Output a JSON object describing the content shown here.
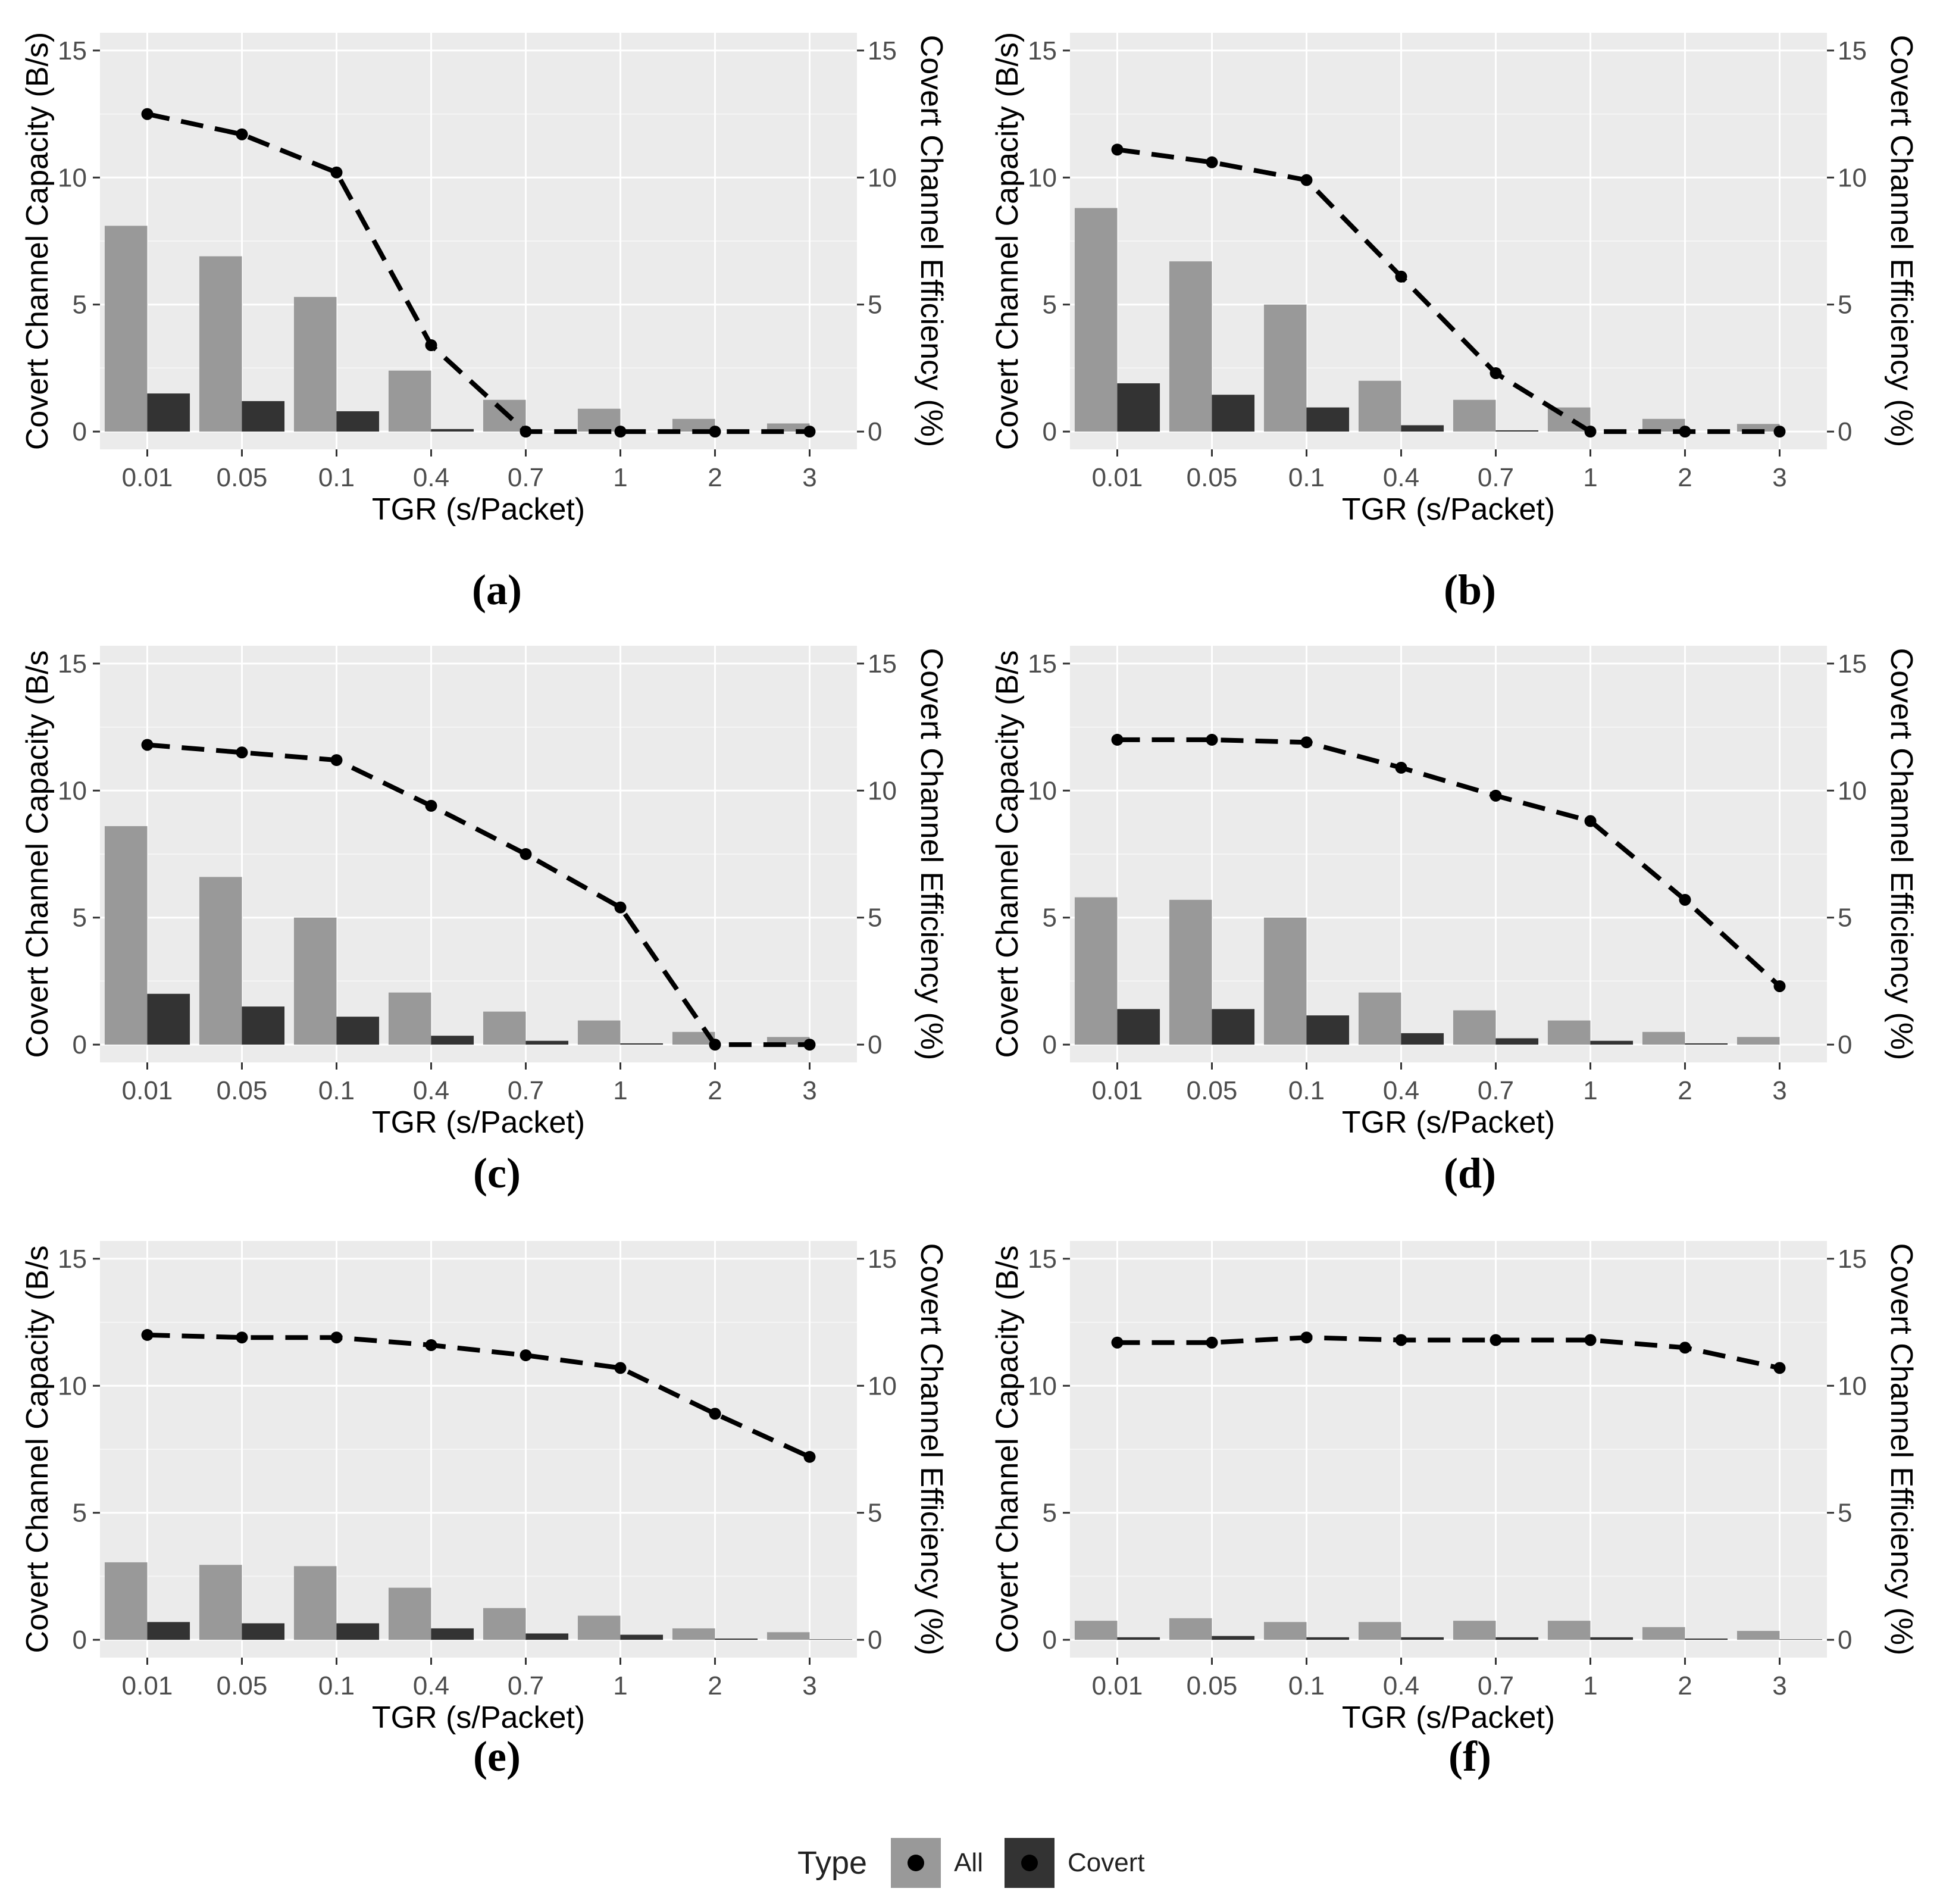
{
  "chart_data": [
    {
      "type": "bar+line",
      "panel": "(a)",
      "categories": [
        "0.01",
        "0.05",
        "0.1",
        "0.4",
        "0.7",
        "1",
        "2",
        "3"
      ],
      "series": [
        {
          "name": "All",
          "kind": "bar",
          "values": [
            8.1,
            6.9,
            5.3,
            2.4,
            1.25,
            0.9,
            0.5,
            0.32
          ]
        },
        {
          "name": "Covert",
          "kind": "bar",
          "values": [
            1.5,
            1.2,
            0.8,
            0.1,
            0.0,
            0.0,
            0.0,
            0.0
          ]
        },
        {
          "name": "Covert Channel Efficiency (%)",
          "kind": "line",
          "values": [
            12.5,
            11.7,
            10.2,
            3.4,
            0.0,
            0.0,
            0.0,
            0.0
          ]
        }
      ],
      "xlabel": "TGR (s/Packet)",
      "ylabel": "Covert Channel Capacity (B/s)",
      "y2label": "Covert Channel Efficiency (%)",
      "ylim": [
        -0.7,
        15.7
      ],
      "yticks": [
        "0",
        "5",
        "10",
        "15"
      ]
    },
    {
      "type": "bar+line",
      "panel": "(b)",
      "categories": [
        "0.01",
        "0.05",
        "0.1",
        "0.4",
        "0.7",
        "1",
        "2",
        "3"
      ],
      "series": [
        {
          "name": "All",
          "kind": "bar",
          "values": [
            8.8,
            6.7,
            5.0,
            2.0,
            1.25,
            0.95,
            0.5,
            0.3
          ]
        },
        {
          "name": "Covert",
          "kind": "bar",
          "values": [
            1.9,
            1.45,
            0.95,
            0.25,
            0.05,
            0.0,
            0.0,
            0.0
          ]
        },
        {
          "name": "Covert Channel Efficiency (%)",
          "kind": "line",
          "values": [
            11.1,
            10.6,
            9.9,
            6.1,
            2.3,
            0.0,
            0.0,
            0.0
          ]
        }
      ],
      "xlabel": "TGR (s/Packet)",
      "ylabel": "Covert Channel Capacity (B/s)",
      "y2label": "Covert Channel Efficiency (%)",
      "ylim": [
        -0.7,
        15.7
      ],
      "yticks": [
        "0",
        "5",
        "10",
        "15"
      ]
    },
    {
      "type": "bar+line",
      "panel": "(c)",
      "categories": [
        "0.01",
        "0.05",
        "0.1",
        "0.4",
        "0.7",
        "1",
        "2",
        "3"
      ],
      "series": [
        {
          "name": "All",
          "kind": "bar",
          "values": [
            8.6,
            6.6,
            5.0,
            2.05,
            1.3,
            0.95,
            0.5,
            0.3
          ]
        },
        {
          "name": "Covert",
          "kind": "bar",
          "values": [
            2.0,
            1.5,
            1.1,
            0.35,
            0.15,
            0.05,
            0.0,
            0.0
          ]
        },
        {
          "name": "Covert Channel Efficiency (%)",
          "kind": "line",
          "values": [
            11.8,
            11.5,
            11.2,
            9.4,
            7.5,
            5.4,
            0.0,
            0.0
          ]
        }
      ],
      "xlabel": "TGR (s/Packet)",
      "ylabel": "Covert Channel Capacity (B/s",
      "y2label": "Covert Channel Efficiency (%)",
      "ylim": [
        -0.7,
        15.7
      ],
      "yticks": [
        "0",
        "5",
        "10",
        "15"
      ]
    },
    {
      "type": "bar+line",
      "panel": "(d)",
      "categories": [
        "0.01",
        "0.05",
        "0.1",
        "0.4",
        "0.7",
        "1",
        "2",
        "3"
      ],
      "series": [
        {
          "name": "All",
          "kind": "bar",
          "values": [
            5.8,
            5.7,
            5.0,
            2.05,
            1.35,
            0.95,
            0.5,
            0.3
          ]
        },
        {
          "name": "Covert",
          "kind": "bar",
          "values": [
            1.4,
            1.4,
            1.15,
            0.45,
            0.25,
            0.15,
            0.05,
            0.0
          ]
        },
        {
          "name": "Covert Channel Efficiency (%)",
          "kind": "line",
          "values": [
            12.0,
            12.0,
            11.9,
            10.9,
            9.8,
            8.8,
            5.7,
            2.3
          ]
        }
      ],
      "xlabel": "TGR (s/Packet)",
      "ylabel": "Covert Channel Capacity (B/s",
      "y2label": "Covert Channel Efficiency (%)",
      "ylim": [
        -0.7,
        15.7
      ],
      "yticks": [
        "0",
        "5",
        "10",
        "15"
      ]
    },
    {
      "type": "bar+line",
      "panel": "(e)",
      "categories": [
        "0.01",
        "0.05",
        "0.1",
        "0.4",
        "0.7",
        "1",
        "2",
        "3"
      ],
      "series": [
        {
          "name": "All",
          "kind": "bar",
          "values": [
            3.05,
            2.95,
            2.9,
            2.05,
            1.25,
            0.95,
            0.45,
            0.3
          ]
        },
        {
          "name": "Covert",
          "kind": "bar",
          "values": [
            0.7,
            0.65,
            0.65,
            0.45,
            0.25,
            0.2,
            0.05,
            0.02
          ]
        },
        {
          "name": "Covert Channel Efficiency (%)",
          "kind": "line",
          "values": [
            12.0,
            11.9,
            11.9,
            11.6,
            11.2,
            10.7,
            8.9,
            7.2
          ]
        }
      ],
      "xlabel": "TGR (s/Packet)",
      "ylabel": "Covert Channel Capacity (B/s",
      "y2label": "Covert Channel Efficiency (%)",
      "ylim": [
        -0.7,
        15.7
      ],
      "yticks": [
        "0",
        "5",
        "10",
        "15"
      ]
    },
    {
      "type": "bar+line",
      "panel": "(f)",
      "categories": [
        "0.01",
        "0.05",
        "0.1",
        "0.4",
        "0.7",
        "1",
        "2",
        "3"
      ],
      "series": [
        {
          "name": "All",
          "kind": "bar",
          "values": [
            0.75,
            0.85,
            0.7,
            0.7,
            0.75,
            0.75,
            0.5,
            0.35
          ]
        },
        {
          "name": "Covert",
          "kind": "bar",
          "values": [
            0.1,
            0.15,
            0.1,
            0.1,
            0.1,
            0.1,
            0.05,
            0.02
          ]
        },
        {
          "name": "Covert Channel Efficiency (%)",
          "kind": "line",
          "values": [
            11.7,
            11.7,
            11.9,
            11.8,
            11.8,
            11.8,
            11.5,
            10.7
          ]
        }
      ],
      "xlabel": "TGR (s/Packet)",
      "ylabel": "Covert Channel Capacity (B/s",
      "y2label": "Covert Channel Efficiency (%)",
      "ylim": [
        -0.7,
        15.7
      ],
      "yticks": [
        "0",
        "5",
        "10",
        "15"
      ]
    }
  ],
  "legend": {
    "title": "Type",
    "items": [
      {
        "label": "All",
        "color": "#999999"
      },
      {
        "label": "Covert",
        "color": "#333333"
      }
    ]
  },
  "colors": {
    "panel_bg": "#ebebeb",
    "grid_major": "#ffffff",
    "grid_minor": "#f5f5f5",
    "all_bar": "#999999",
    "covert_bar": "#333333",
    "line": "#000000"
  }
}
